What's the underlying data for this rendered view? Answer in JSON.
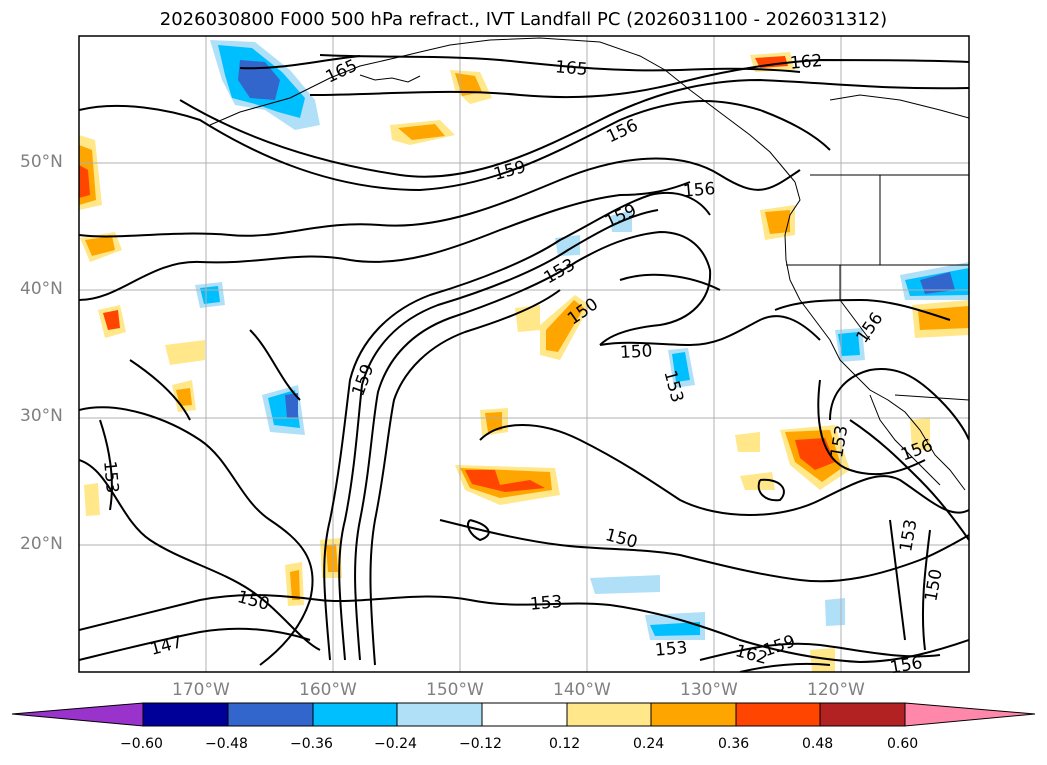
{
  "title": "2026030800 F000 500 hPa refract., IVT Landfall PC (2026031100 - 2026031312)",
  "lat_labels": [
    "50°N",
    "40°N",
    "30°N",
    "20°N"
  ],
  "lon_labels": [
    "170°W",
    "160°W",
    "150°W",
    "140°W",
    "130°W",
    "120°W"
  ],
  "contour_labels": [
    {
      "text": "165"
    },
    {
      "text": "165"
    },
    {
      "text": "162"
    },
    {
      "text": "156"
    },
    {
      "text": "159"
    },
    {
      "text": "156"
    },
    {
      "text": "159"
    },
    {
      "text": "153"
    },
    {
      "text": "150"
    },
    {
      "text": "159"
    },
    {
      "text": "150"
    },
    {
      "text": "153"
    },
    {
      "text": "156"
    },
    {
      "text": "153"
    },
    {
      "text": "156"
    },
    {
      "text": "153"
    },
    {
      "text": "150"
    },
    {
      "text": "153"
    },
    {
      "text": "150"
    },
    {
      "text": "153"
    },
    {
      "text": "153"
    },
    {
      "text": "147"
    },
    {
      "text": "150"
    },
    {
      "text": "159"
    },
    {
      "text": "162"
    },
    {
      "text": "156"
    }
  ],
  "colorbar": {
    "ticks": [
      "−0.60",
      "−0.48",
      "−0.36",
      "−0.24",
      "−0.12",
      "0.12",
      "0.24",
      "0.36",
      "0.48",
      "0.60"
    ],
    "colors": [
      "#9933cc",
      "#000099",
      "#3366cc",
      "#00bfff",
      "#b0e0f8",
      "#ffffff",
      "#ffe78a",
      "#ffa500",
      "#ff4500",
      "#b22222",
      "#ff88aa"
    ]
  }
}
